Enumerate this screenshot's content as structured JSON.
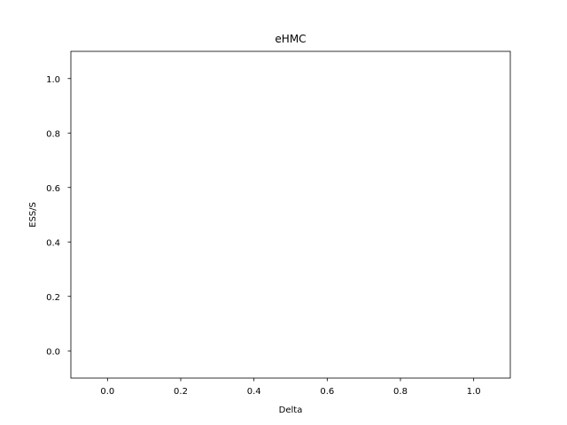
{
  "chart_data": {
    "type": "line",
    "title": "eHMC",
    "xlabel": "Delta",
    "ylabel": "ESS/S",
    "xlim": [
      -0.1,
      1.1
    ],
    "ylim": [
      -0.1,
      1.1
    ],
    "x_ticks": [
      0.0,
      0.2,
      0.4,
      0.6,
      0.8,
      1.0
    ],
    "y_ticks": [
      0.0,
      0.2,
      0.4,
      0.6,
      0.8,
      1.0
    ],
    "x_tick_labels": [
      "0.0",
      "0.2",
      "0.4",
      "0.6",
      "0.8",
      "1.0"
    ],
    "y_tick_labels": [
      "0.0",
      "0.2",
      "0.4",
      "0.6",
      "0.8",
      "1.0"
    ],
    "series": [],
    "grid": false,
    "legend": "none",
    "colors": {
      "axes": "#000000",
      "background": "#ffffff"
    }
  }
}
